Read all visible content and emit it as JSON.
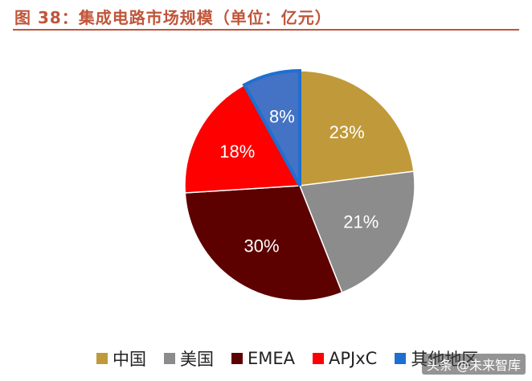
{
  "header": {
    "title": "图 38：集成电路市场规模（单位：亿元）"
  },
  "colors": {
    "title": "#c0553a",
    "china": "#c09a3a",
    "usa": "#8c8c8c",
    "emea": "#5c0000",
    "apjxc": "#ff0000",
    "others": "#4472c4",
    "others_stroke": "#1f6fd0"
  },
  "chart_data": {
    "type": "pie",
    "title": "集成电路市场规模（单位：亿元）",
    "categories": [
      "中国",
      "美国",
      "EMEA",
      "APJxC",
      "其他地区"
    ],
    "values": [
      23,
      21,
      30,
      18,
      8
    ],
    "labels": [
      "23%",
      "21%",
      "30%",
      "18%",
      "8%"
    ],
    "start": "12 o'clock",
    "direction": "clockwise",
    "legend_position": "bottom"
  },
  "legend": {
    "items": [
      {
        "label": "中国",
        "color": "#c09a3a"
      },
      {
        "label": "美国",
        "color": "#8c8c8c"
      },
      {
        "label": "EMEA",
        "color": "#5c0000"
      },
      {
        "label": "APJxC",
        "color": "#ff0000"
      },
      {
        "label": "其他地区",
        "color": "#1f6fd0"
      }
    ]
  },
  "watermark": {
    "text": "头条 @未来智库"
  }
}
